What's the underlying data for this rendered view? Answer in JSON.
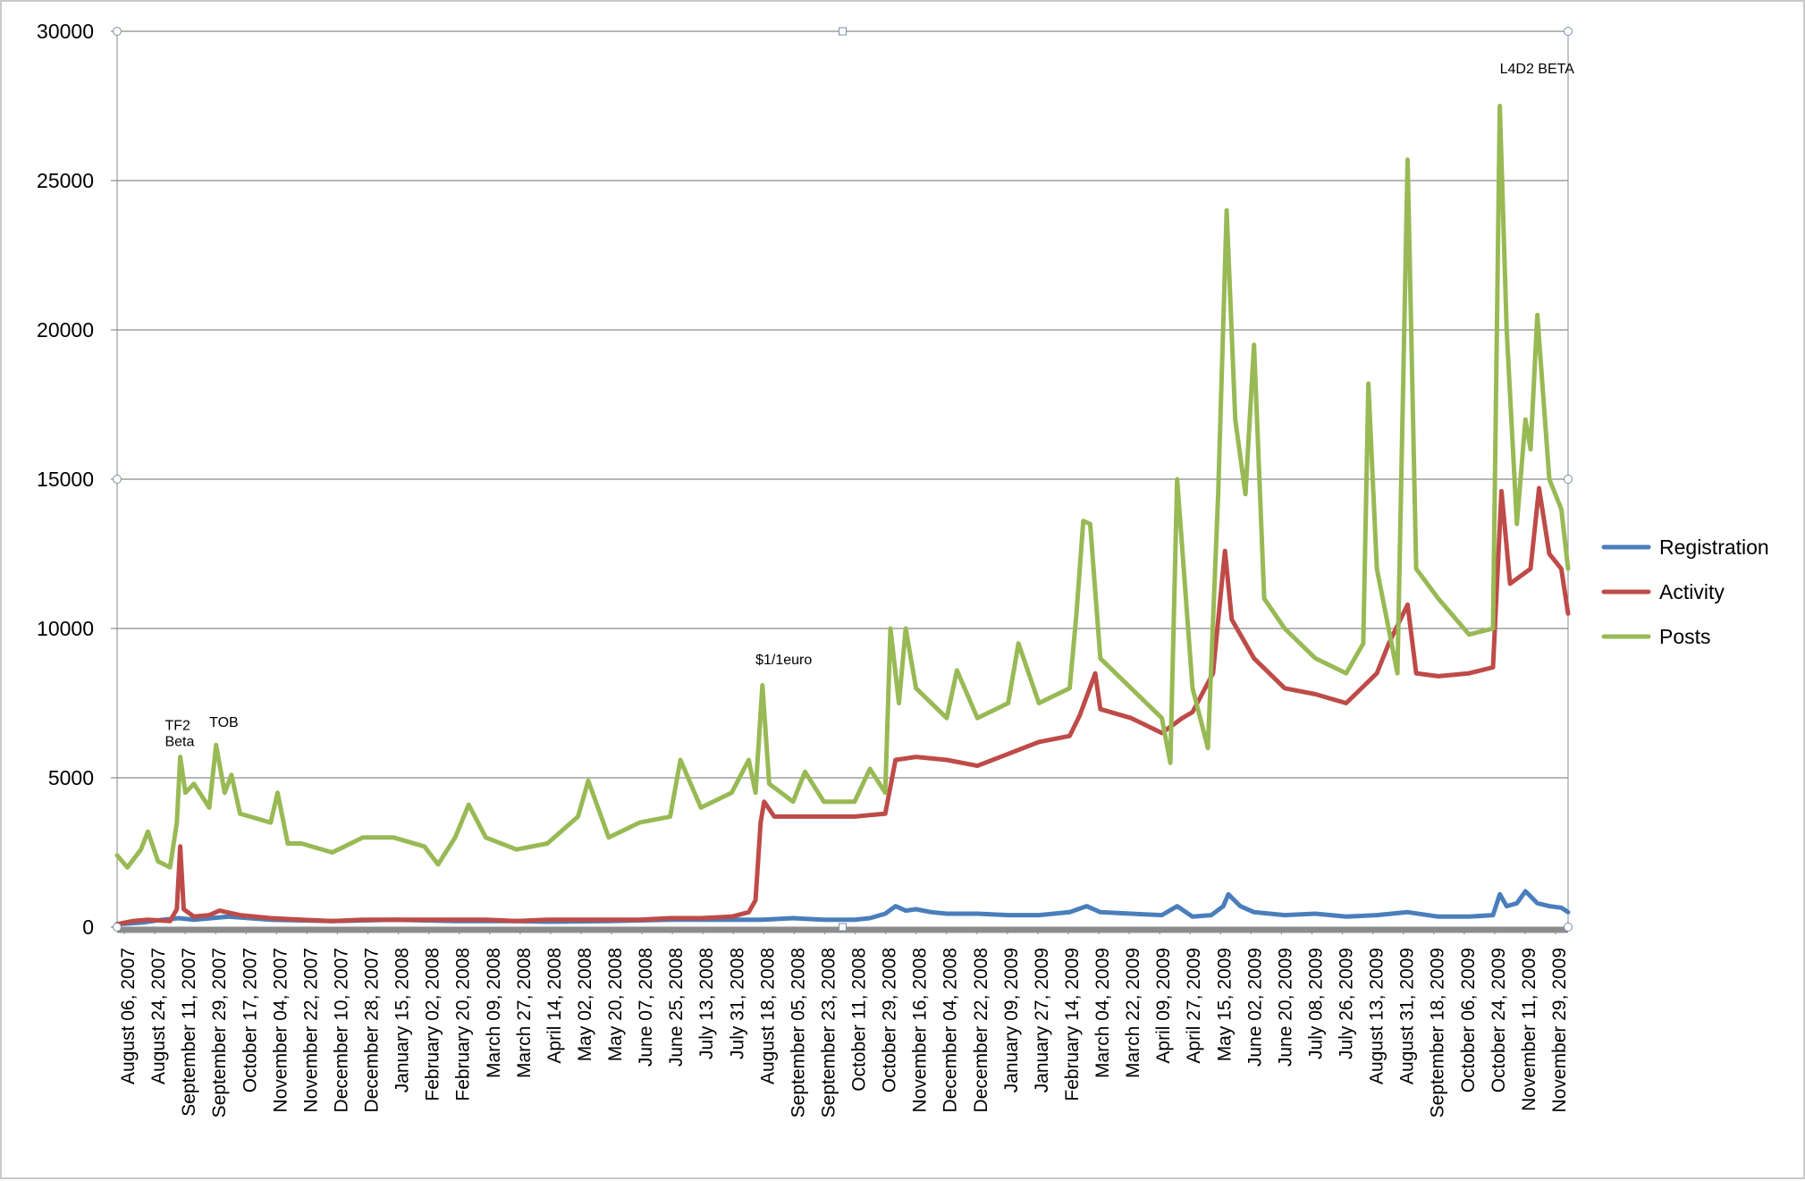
{
  "chart_data": {
    "type": "line",
    "ylim": [
      0,
      30000
    ],
    "y_ticks": [
      "0",
      "5000",
      "10000",
      "15000",
      "20000",
      "25000",
      "30000"
    ],
    "grid": "horizontal",
    "legend_placement": "right",
    "x_tick_labels": [
      "August 06, 2007",
      "August 24, 2007",
      "September 11, 2007",
      "September 29, 2007",
      "October 17, 2007",
      "November 04, 2007",
      "November 22, 2007",
      "December 10, 2007",
      "December 28, 2007",
      "January 15, 2008",
      "February 02, 2008",
      "February 20, 2008",
      "March 09, 2008",
      "March 27, 2008",
      "April 14, 2008",
      "May 02, 2008",
      "May 20, 2008",
      "June 07, 2008",
      "June 25, 2008",
      "July 13, 2008",
      "July 31, 2008",
      "August 18, 2008",
      "September 05, 2008",
      "September 23, 2008",
      "October 11, 2008",
      "October 29, 2008",
      "November 16, 2008",
      "December 04, 2008",
      "December 22, 2008",
      "January 09, 2009",
      "January 27, 2009",
      "February 14, 2009",
      "March 04, 2009",
      "March 22, 2009",
      "April 09, 2009",
      "April 27, 2009",
      "May 15, 2009",
      "June 02, 2009",
      "June 20, 2009",
      "July 08, 2009",
      "July 26, 2009",
      "August 13, 2009",
      "August 31, 2009",
      "September 18, 2009",
      "October 06, 2009",
      "October 24, 2009",
      "November 11, 2009",
      "November 29, 2009"
    ],
    "x_range": [
      "2007-08-06",
      "2009-12-03"
    ],
    "annotations": [
      {
        "text": "TF2",
        "x": "2007-09-03",
        "y": 6600
      },
      {
        "text": "Beta",
        "x": "2007-09-03",
        "y": 6060
      },
      {
        "text": "TOB",
        "x": "2007-09-29",
        "y": 6700
      },
      {
        "text": "$1/1euro",
        "x": "2008-08-14",
        "y": 8800
      },
      {
        "text": "L4D2 BETA",
        "x": "2009-10-24",
        "y": 28600
      }
    ],
    "series": [
      {
        "name": "Registration",
        "color": "#4a7ebb",
        "points": [
          [
            "2007-08-06",
            100
          ],
          [
            "2007-08-20",
            150
          ],
          [
            "2007-09-02",
            250
          ],
          [
            "2007-09-11",
            300
          ],
          [
            "2007-09-20",
            250
          ],
          [
            "2007-10-10",
            350
          ],
          [
            "2007-11-04",
            250
          ],
          [
            "2007-12-10",
            200
          ],
          [
            "2008-01-15",
            250
          ],
          [
            "2008-02-20",
            200
          ],
          [
            "2008-03-27",
            200
          ],
          [
            "2008-04-14",
            180
          ],
          [
            "2008-05-20",
            200
          ],
          [
            "2008-06-25",
            250
          ],
          [
            "2008-07-31",
            250
          ],
          [
            "2008-08-18",
            250
          ],
          [
            "2008-09-05",
            300
          ],
          [
            "2008-09-23",
            250
          ],
          [
            "2008-10-11",
            250
          ],
          [
            "2008-10-20",
            300
          ],
          [
            "2008-10-29",
            450
          ],
          [
            "2008-11-04",
            700
          ],
          [
            "2008-11-10",
            550
          ],
          [
            "2008-11-16",
            600
          ],
          [
            "2008-11-25",
            500
          ],
          [
            "2008-12-04",
            450
          ],
          [
            "2008-12-22",
            450
          ],
          [
            "2009-01-09",
            400
          ],
          [
            "2009-01-27",
            400
          ],
          [
            "2009-02-14",
            500
          ],
          [
            "2009-02-24",
            700
          ],
          [
            "2009-03-04",
            500
          ],
          [
            "2009-03-22",
            450
          ],
          [
            "2009-04-09",
            400
          ],
          [
            "2009-04-18",
            700
          ],
          [
            "2009-04-27",
            350
          ],
          [
            "2009-05-08",
            400
          ],
          [
            "2009-05-15",
            700
          ],
          [
            "2009-05-18",
            1100
          ],
          [
            "2009-05-25",
            700
          ],
          [
            "2009-06-02",
            500
          ],
          [
            "2009-06-20",
            400
          ],
          [
            "2009-07-08",
            450
          ],
          [
            "2009-07-26",
            350
          ],
          [
            "2009-08-13",
            400
          ],
          [
            "2009-08-31",
            500
          ],
          [
            "2009-09-18",
            350
          ],
          [
            "2009-10-06",
            350
          ],
          [
            "2009-10-20",
            400
          ],
          [
            "2009-10-24",
            1100
          ],
          [
            "2009-10-28",
            700
          ],
          [
            "2009-11-03",
            800
          ],
          [
            "2009-11-08",
            1200
          ],
          [
            "2009-11-15",
            800
          ],
          [
            "2009-11-22",
            700
          ],
          [
            "2009-11-29",
            650
          ],
          [
            "2009-12-03",
            500
          ]
        ]
      },
      {
        "name": "Activity",
        "color": "#be4b48",
        "points": [
          [
            "2007-08-06",
            100
          ],
          [
            "2007-08-15",
            200
          ],
          [
            "2007-08-24",
            250
          ],
          [
            "2007-09-06",
            200
          ],
          [
            "2007-09-10",
            600
          ],
          [
            "2007-09-12",
            2700
          ],
          [
            "2007-09-14",
            600
          ],
          [
            "2007-09-20",
            350
          ],
          [
            "2007-09-29",
            400
          ],
          [
            "2007-10-05",
            550
          ],
          [
            "2007-10-17",
            400
          ],
          [
            "2007-11-04",
            300
          ],
          [
            "2007-11-22",
            250
          ],
          [
            "2007-12-10",
            200
          ],
          [
            "2007-12-28",
            250
          ],
          [
            "2008-01-15",
            250
          ],
          [
            "2008-02-02",
            250
          ],
          [
            "2008-02-20",
            250
          ],
          [
            "2008-03-09",
            250
          ],
          [
            "2008-03-27",
            200
          ],
          [
            "2008-04-14",
            250
          ],
          [
            "2008-05-02",
            250
          ],
          [
            "2008-05-20",
            250
          ],
          [
            "2008-06-07",
            250
          ],
          [
            "2008-06-25",
            300
          ],
          [
            "2008-07-13",
            300
          ],
          [
            "2008-07-31",
            350
          ],
          [
            "2008-08-10",
            500
          ],
          [
            "2008-08-14",
            900
          ],
          [
            "2008-08-17",
            3500
          ],
          [
            "2008-08-19",
            4200
          ],
          [
            "2008-08-25",
            3700
          ],
          [
            "2008-09-05",
            3700
          ],
          [
            "2008-09-23",
            3700
          ],
          [
            "2008-10-11",
            3700
          ],
          [
            "2008-10-29",
            3800
          ],
          [
            "2008-11-04",
            5600
          ],
          [
            "2008-11-16",
            5700
          ],
          [
            "2008-12-04",
            5600
          ],
          [
            "2008-12-22",
            5400
          ],
          [
            "2009-01-09",
            5800
          ],
          [
            "2009-01-27",
            6200
          ],
          [
            "2009-02-14",
            6400
          ],
          [
            "2009-02-20",
            7100
          ],
          [
            "2009-03-01",
            8500
          ],
          [
            "2009-03-04",
            7300
          ],
          [
            "2009-03-22",
            7000
          ],
          [
            "2009-04-09",
            6500
          ],
          [
            "2009-04-21",
            7000
          ],
          [
            "2009-04-27",
            7200
          ],
          [
            "2009-05-09",
            8500
          ],
          [
            "2009-05-16",
            12600
          ],
          [
            "2009-05-20",
            10300
          ],
          [
            "2009-06-02",
            9000
          ],
          [
            "2009-06-20",
            8000
          ],
          [
            "2009-07-08",
            7800
          ],
          [
            "2009-07-26",
            7500
          ],
          [
            "2009-08-13",
            8500
          ],
          [
            "2009-08-20",
            9500
          ],
          [
            "2009-08-31",
            10800
          ],
          [
            "2009-09-05",
            8500
          ],
          [
            "2009-09-18",
            8400
          ],
          [
            "2009-10-06",
            8500
          ],
          [
            "2009-10-20",
            8700
          ],
          [
            "2009-10-25",
            14600
          ],
          [
            "2009-10-30",
            11500
          ],
          [
            "2009-11-11",
            12000
          ],
          [
            "2009-11-16",
            14700
          ],
          [
            "2009-11-22",
            12500
          ],
          [
            "2009-11-29",
            12000
          ],
          [
            "2009-12-03",
            10500
          ]
        ]
      },
      {
        "name": "Posts",
        "color": "#98b954",
        "points": [
          [
            "2007-08-06",
            2400
          ],
          [
            "2007-08-12",
            2000
          ],
          [
            "2007-08-20",
            2600
          ],
          [
            "2007-08-24",
            3200
          ],
          [
            "2007-08-30",
            2200
          ],
          [
            "2007-09-06",
            2000
          ],
          [
            "2007-09-10",
            3500
          ],
          [
            "2007-09-12",
            5700
          ],
          [
            "2007-09-15",
            4500
          ],
          [
            "2007-09-20",
            4800
          ],
          [
            "2007-09-29",
            4000
          ],
          [
            "2007-10-03",
            6100
          ],
          [
            "2007-10-08",
            4500
          ],
          [
            "2007-10-12",
            5100
          ],
          [
            "2007-10-17",
            3800
          ],
          [
            "2007-11-04",
            3500
          ],
          [
            "2007-11-08",
            4500
          ],
          [
            "2007-11-14",
            2800
          ],
          [
            "2007-11-22",
            2800
          ],
          [
            "2007-12-10",
            2500
          ],
          [
            "2007-12-28",
            3000
          ],
          [
            "2008-01-15",
            3000
          ],
          [
            "2008-02-02",
            2700
          ],
          [
            "2008-02-10",
            2100
          ],
          [
            "2008-02-20",
            3000
          ],
          [
            "2008-02-28",
            4100
          ],
          [
            "2008-03-09",
            3000
          ],
          [
            "2008-03-27",
            2600
          ],
          [
            "2008-04-14",
            2800
          ],
          [
            "2008-05-02",
            3700
          ],
          [
            "2008-05-08",
            4900
          ],
          [
            "2008-05-20",
            3000
          ],
          [
            "2008-06-07",
            3500
          ],
          [
            "2008-06-25",
            3700
          ],
          [
            "2008-07-01",
            5600
          ],
          [
            "2008-07-13",
            4000
          ],
          [
            "2008-07-31",
            4500
          ],
          [
            "2008-08-10",
            5600
          ],
          [
            "2008-08-14",
            4500
          ],
          [
            "2008-08-18",
            8100
          ],
          [
            "2008-08-22",
            4800
          ],
          [
            "2008-09-05",
            4200
          ],
          [
            "2008-09-12",
            5200
          ],
          [
            "2008-09-23",
            4200
          ],
          [
            "2008-10-11",
            4200
          ],
          [
            "2008-10-20",
            5300
          ],
          [
            "2008-10-29",
            4500
          ],
          [
            "2008-11-01",
            10000
          ],
          [
            "2008-11-06",
            7500
          ],
          [
            "2008-11-10",
            10000
          ],
          [
            "2008-11-16",
            8000
          ],
          [
            "2008-12-04",
            7000
          ],
          [
            "2008-12-10",
            8600
          ],
          [
            "2008-12-22",
            7000
          ],
          [
            "2009-01-09",
            7500
          ],
          [
            "2009-01-15",
            9500
          ],
          [
            "2009-01-27",
            7500
          ],
          [
            "2009-02-14",
            8000
          ],
          [
            "2009-02-18",
            10500
          ],
          [
            "2009-02-22",
            13600
          ],
          [
            "2009-02-26",
            13500
          ],
          [
            "2009-03-04",
            9000
          ],
          [
            "2009-03-22",
            8000
          ],
          [
            "2009-04-09",
            7000
          ],
          [
            "2009-04-14",
            5500
          ],
          [
            "2009-04-18",
            15000
          ],
          [
            "2009-04-27",
            8000
          ],
          [
            "2009-05-06",
            6000
          ],
          [
            "2009-05-12",
            14500
          ],
          [
            "2009-05-17",
            24000
          ],
          [
            "2009-05-22",
            17000
          ],
          [
            "2009-05-28",
            14500
          ],
          [
            "2009-06-02",
            19500
          ],
          [
            "2009-06-08",
            11000
          ],
          [
            "2009-06-20",
            10000
          ],
          [
            "2009-07-08",
            9000
          ],
          [
            "2009-07-26",
            8500
          ],
          [
            "2009-08-05",
            9500
          ],
          [
            "2009-08-08",
            18200
          ],
          [
            "2009-08-13",
            12000
          ],
          [
            "2009-08-25",
            8500
          ],
          [
            "2009-08-31",
            25700
          ],
          [
            "2009-09-05",
            12000
          ],
          [
            "2009-09-18",
            11000
          ],
          [
            "2009-10-06",
            9800
          ],
          [
            "2009-10-20",
            10000
          ],
          [
            "2009-10-24",
            27500
          ],
          [
            "2009-10-28",
            20000
          ],
          [
            "2009-11-03",
            13500
          ],
          [
            "2009-11-08",
            17000
          ],
          [
            "2009-11-11",
            16000
          ],
          [
            "2009-11-15",
            20500
          ],
          [
            "2009-11-22",
            15000
          ],
          [
            "2009-11-29",
            14000
          ],
          [
            "2009-12-03",
            12000
          ]
        ]
      }
    ]
  }
}
